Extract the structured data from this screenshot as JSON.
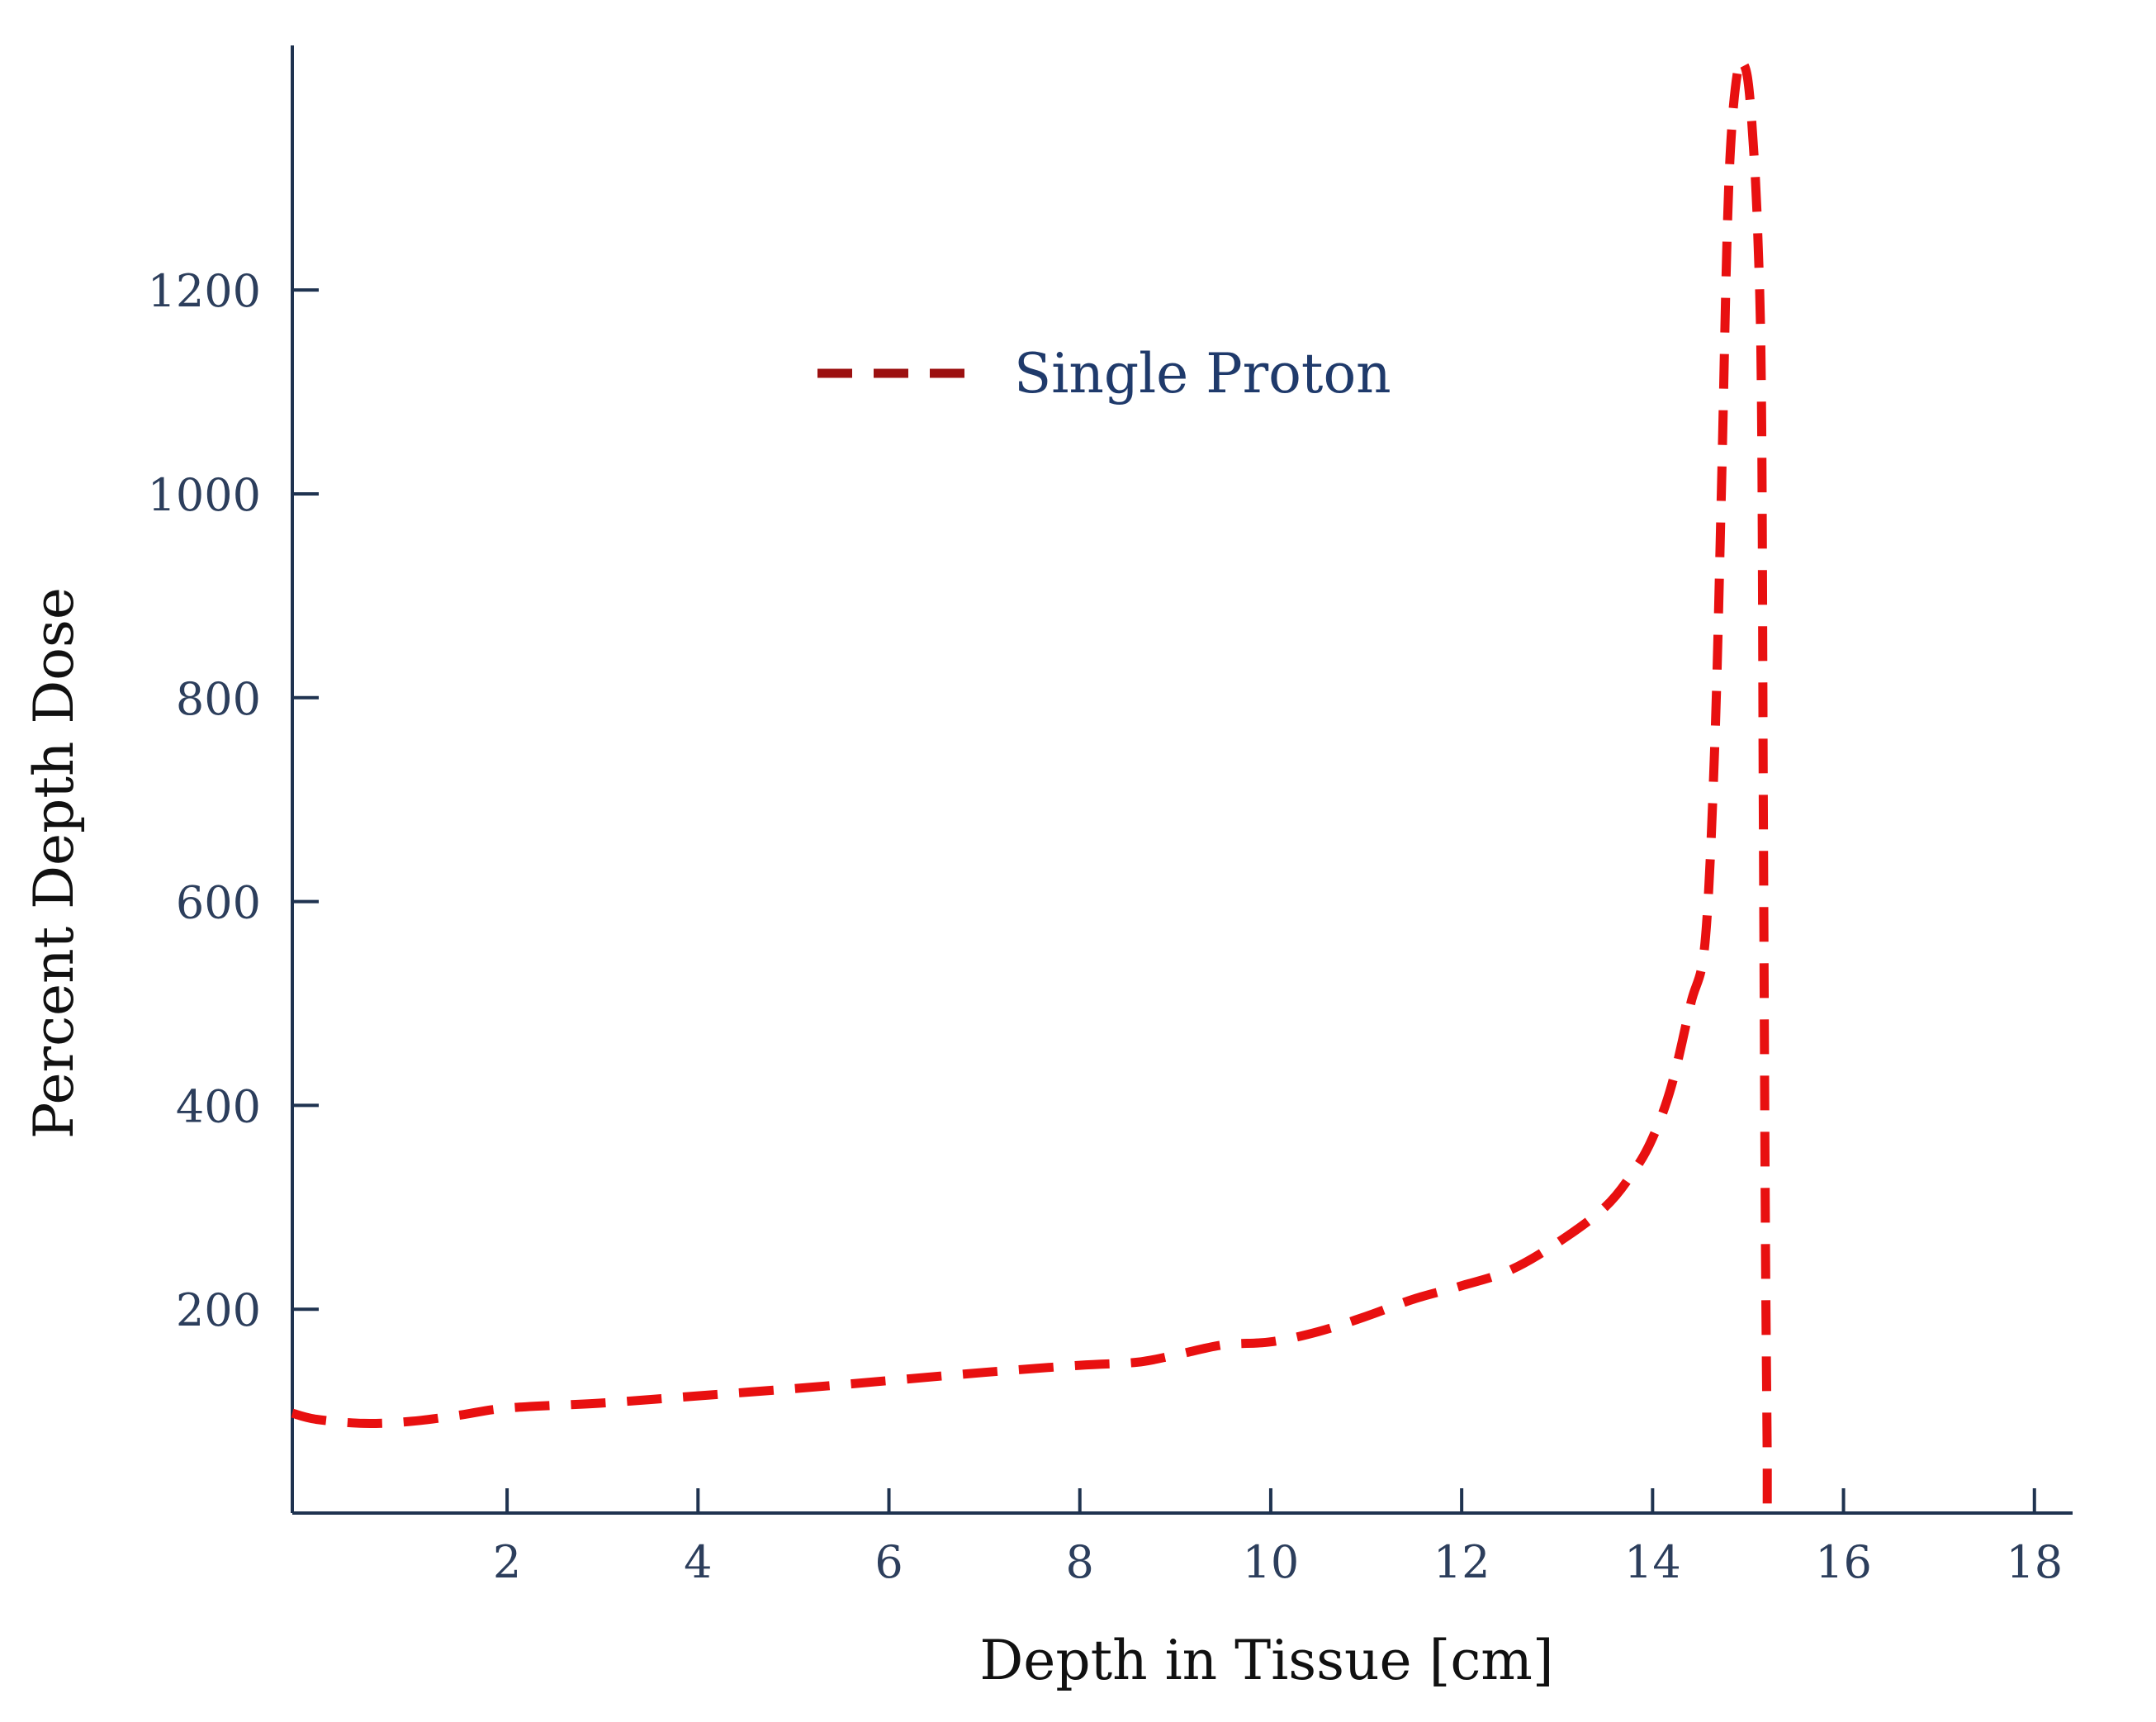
{
  "colors": {
    "axis": "#1f3350",
    "series": "#e81010",
    "legend_line": "#9c1010",
    "tick_text": "#2c3e5c",
    "legend_text": "#1f3a6b"
  },
  "chart_data": {
    "type": "line",
    "title": "",
    "xlabel": "Depth in Tissue [cm]",
    "ylabel": "Percent Depth Dose",
    "xlim": [
      -0.25,
      18.4
    ],
    "ylim": [
      0,
      1440
    ],
    "x_ticks": [
      2,
      4,
      6,
      8,
      10,
      12,
      14,
      16,
      18
    ],
    "y_ticks": [
      200,
      400,
      600,
      800,
      1000,
      1200
    ],
    "legend": {
      "position": "top-center",
      "entries": [
        "Single Proton"
      ]
    },
    "series": [
      {
        "name": "Single Proton",
        "style": "dashed",
        "x": [
          -0.25,
          0.0,
          0.5,
          1.0,
          1.5,
          2.0,
          3.0,
          4.0,
          5.0,
          6.0,
          7.0,
          8.0,
          8.6,
          9.0,
          9.5,
          10.0,
          10.5,
          11.0,
          11.5,
          12.0,
          12.5,
          13.0,
          13.5,
          13.8,
          14.0,
          14.2,
          14.4,
          14.55,
          14.65,
          14.72,
          14.78,
          14.83,
          14.9,
          14.95,
          15.0,
          15.05,
          15.1,
          15.14,
          15.16,
          15.18,
          15.2,
          15.2
        ],
        "y": [
          98,
          92,
          88,
          90,
          96,
          103,
          108,
          115,
          122,
          130,
          138,
          145,
          148,
          155,
          165,
          168,
          178,
          193,
          210,
          223,
          238,
          265,
          300,
          335,
          368,
          420,
          500,
          560,
          750,
          1000,
          1250,
          1360,
          1420,
          1422,
          1405,
          1350,
          1260,
          1100,
          700,
          300,
          60,
          0
        ]
      }
    ]
  }
}
